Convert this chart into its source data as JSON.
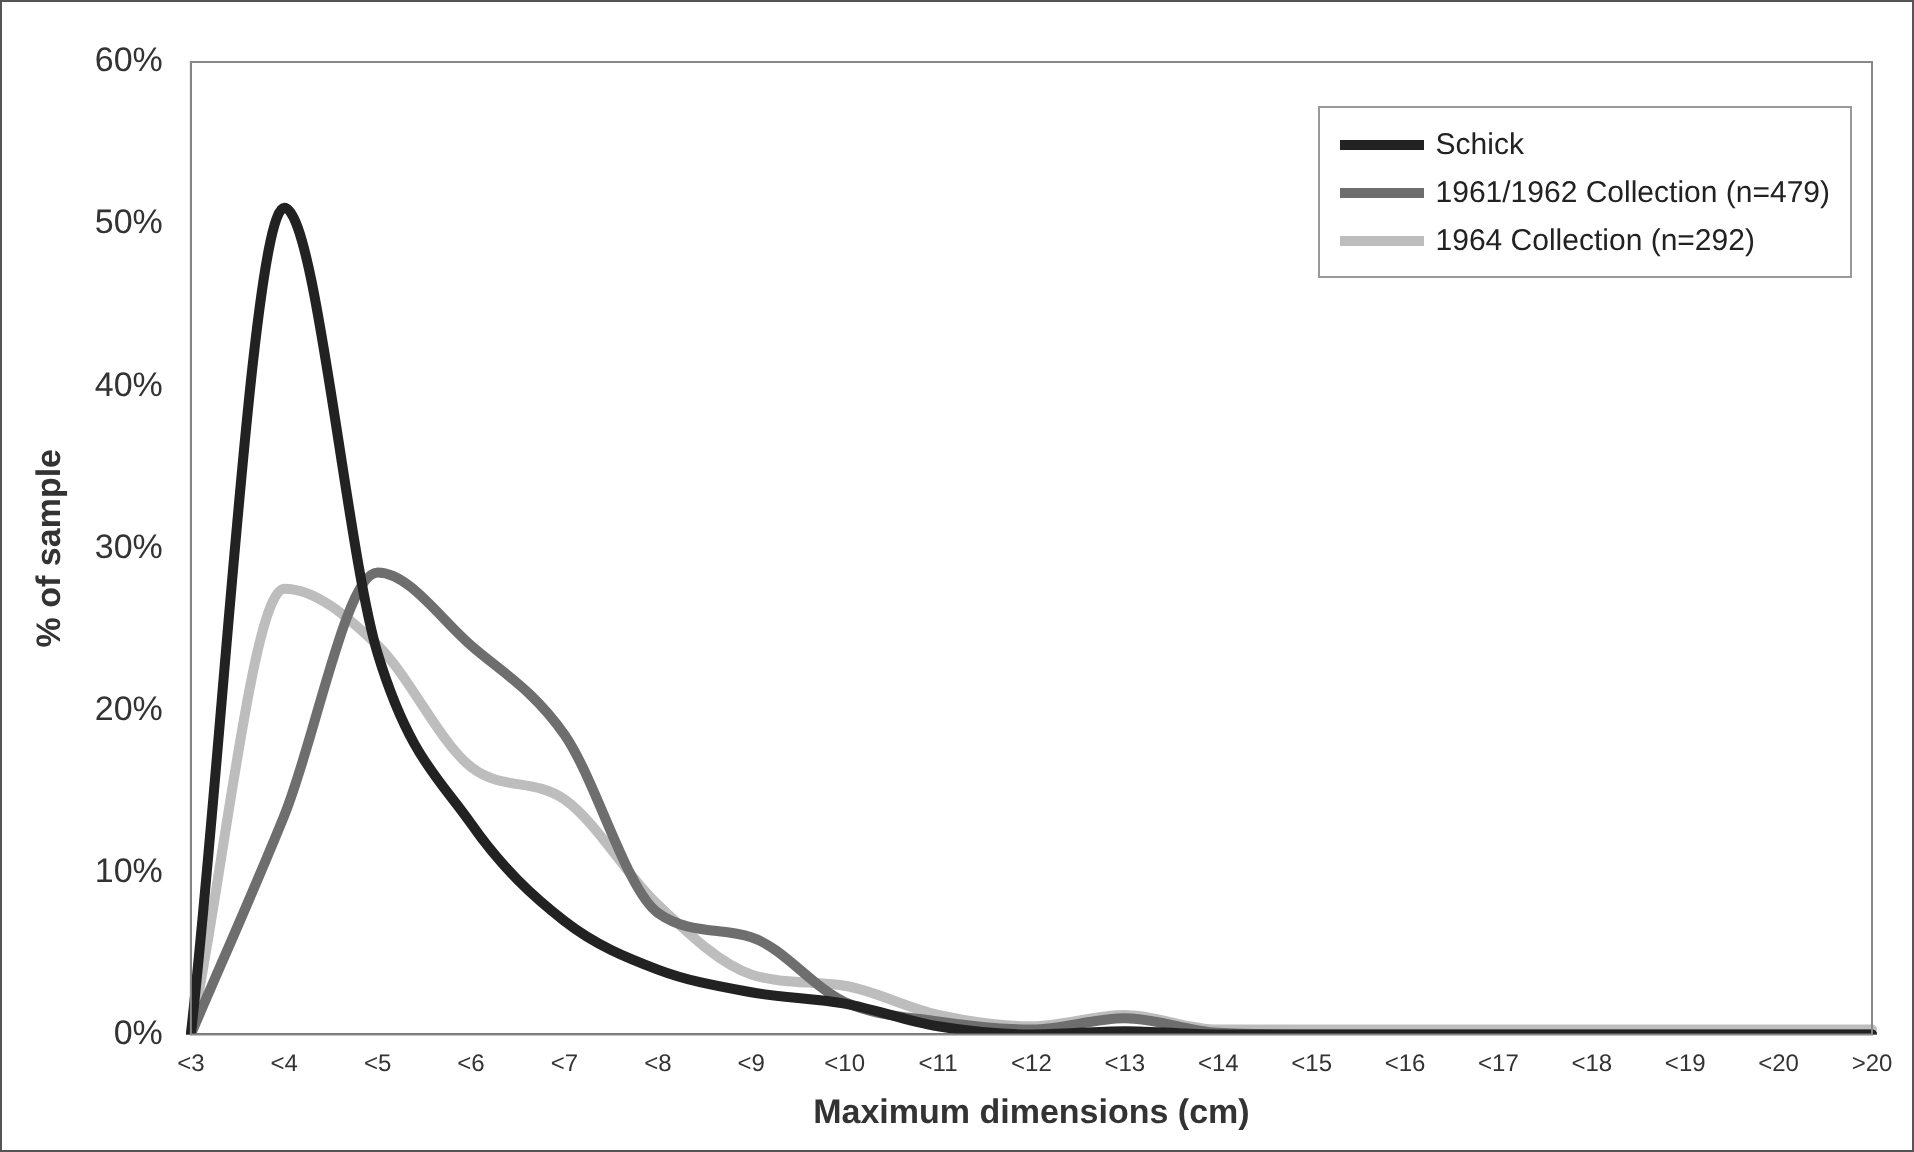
{
  "chart_data": {
    "type": "line",
    "xlabel": "Maximum dimensions (cm)",
    "ylabel": "% of sample",
    "categories": [
      "<3",
      "<4",
      "<5",
      "<6",
      "<7",
      "<8",
      "<9",
      "<10",
      "<11",
      "<12",
      "<13",
      "<14",
      "<15",
      "<16",
      "<17",
      "<18",
      "<19",
      "<20",
      ">20"
    ],
    "series": [
      {
        "name": "Schick",
        "color": "#222222",
        "values": [
          0,
          51,
          23.5,
          13,
          7,
          4,
          2.6,
          1.9,
          0.5,
          0,
          0.2,
          0,
          0,
          0,
          0,
          0,
          0,
          0,
          0
        ]
      },
      {
        "name": "1961/1962 Collection (n=479)",
        "color": "#6e6e6e",
        "values": [
          0,
          13.5,
          28.5,
          24,
          18.5,
          7.5,
          6,
          2,
          0.8,
          0.3,
          1,
          0.1,
          0,
          0,
          0,
          0,
          0,
          0,
          0
        ]
      },
      {
        "name": "1964 Collection (n=292)",
        "color": "#bdbdbd",
        "values": [
          0,
          27.5,
          24,
          16.5,
          14.5,
          8,
          3.7,
          3,
          1.2,
          0.5,
          1.2,
          0.3,
          0.3,
          0.3,
          0.3,
          0.3,
          0.3,
          0.3,
          0.3
        ]
      }
    ],
    "ylim": [
      0,
      60
    ],
    "yticks": [
      {
        "value": 0,
        "label": "0%"
      },
      {
        "value": 10,
        "label": "10%"
      },
      {
        "value": 20,
        "label": "20%"
      },
      {
        "value": 30,
        "label": "30%"
      },
      {
        "value": 40,
        "label": "40%"
      },
      {
        "value": 50,
        "label": "50%"
      },
      {
        "value": 60,
        "label": "60%"
      }
    ],
    "grid": false,
    "legend": "top right",
    "marker": "none",
    "line_style": "solid"
  }
}
